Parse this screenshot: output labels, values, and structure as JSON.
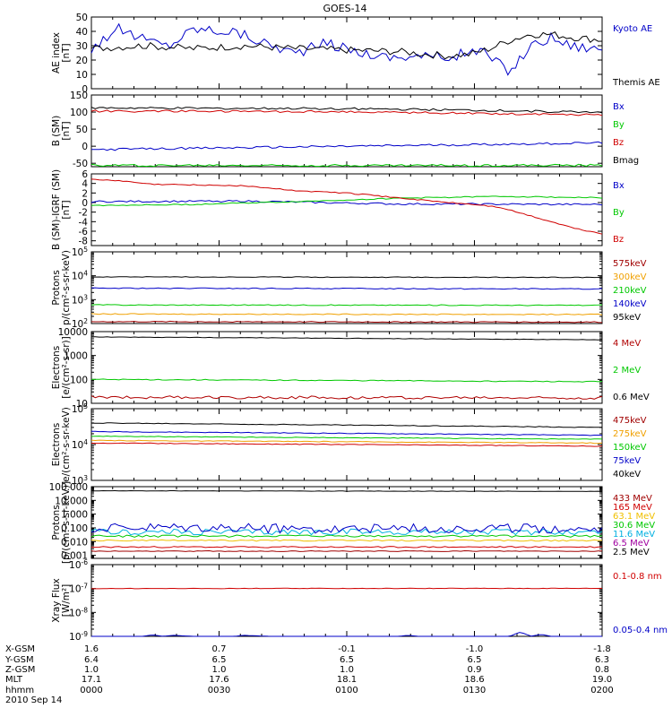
{
  "title": "GOES-14",
  "colors": {
    "black": "#000000",
    "blue": "#0000c8",
    "red": "#d00000",
    "green": "#00c800",
    "yellow": "#f0c000",
    "orange": "#f0a000",
    "cyan": "#00b0e0",
    "maroon": "#a00000",
    "darkred": "#b00000",
    "purple": "#a000a0"
  },
  "chart_data": [
    {
      "type": "line",
      "ylabel": [
        "AE index",
        "[nT]"
      ],
      "scale": "linear",
      "ylim": [
        0,
        50
      ],
      "yticks": [
        {
          "v": 0,
          "t": "0"
        },
        {
          "v": 10,
          "t": "10"
        },
        {
          "v": 20,
          "t": "20"
        },
        {
          "v": 30,
          "t": "30"
        },
        {
          "v": 40,
          "t": "40"
        },
        {
          "v": 50,
          "t": "50"
        }
      ],
      "series": [
        {
          "name": "Kyoto AE",
          "color": "blue",
          "noise": 1.5,
          "legendColor": "blue",
          "x": [
            0,
            0.05,
            0.1,
            0.15,
            0.2,
            0.28,
            0.34,
            0.4,
            0.46,
            0.52,
            0.58,
            0.64,
            0.7,
            0.76,
            0.78,
            0.82,
            0.86,
            0.9,
            0.94,
            1.0
          ],
          "y": [
            28,
            42,
            35,
            30,
            42,
            40,
            32,
            25,
            32,
            26,
            22,
            23,
            22,
            27,
            22,
            12,
            30,
            36,
            30,
            28
          ]
        },
        {
          "name": "Themis AE",
          "color": "black",
          "noise": 1.0,
          "legendColor": "black",
          "x": [
            0,
            0.1,
            0.2,
            0.3,
            0.4,
            0.5,
            0.6,
            0.66,
            0.7,
            0.74,
            0.78,
            0.82,
            0.86,
            0.9,
            0.94,
            1.0
          ],
          "y": [
            28,
            30,
            28,
            30,
            28,
            27,
            26,
            24,
            23,
            24,
            28,
            34,
            38,
            38,
            36,
            34
          ]
        }
      ]
    },
    {
      "type": "line",
      "ylabel": [
        "B (SM)",
        "[nT]"
      ],
      "scale": "linear",
      "ylim": [
        -60,
        150
      ],
      "yticks": [
        {
          "v": -50,
          "t": "-50"
        },
        {
          "v": 0,
          "t": "0"
        },
        {
          "v": 50,
          "t": "50"
        },
        {
          "v": 100,
          "t": "100"
        },
        {
          "v": 150,
          "t": "150"
        }
      ],
      "series": [
        {
          "name": "Bx",
          "color": "blue",
          "noise": 0.3,
          "legendColor": "blue",
          "x": [
            0,
            1
          ],
          "y": [
            -10,
            10
          ]
        },
        {
          "name": "By",
          "color": "green",
          "noise": 0.3,
          "legendColor": "green",
          "x": [
            0,
            1
          ],
          "y": [
            -56,
            -56
          ]
        },
        {
          "name": "Bz",
          "color": "red",
          "noise": 0.3,
          "legendColor": "red",
          "x": [
            0,
            0.5,
            1
          ],
          "y": [
            103,
            101,
            92
          ]
        },
        {
          "name": "Bmag",
          "color": "black",
          "noise": 0.3,
          "legendColor": "black",
          "x": [
            0,
            0.5,
            1
          ],
          "y": [
            112,
            110,
            100
          ]
        }
      ]
    },
    {
      "type": "line",
      "ylabel": [
        "B (SM)-IGRF (SM)",
        "[nT]"
      ],
      "scale": "linear",
      "ylim": [
        -9,
        6
      ],
      "yticks": [
        {
          "v": 6,
          "t": "6"
        },
        {
          "v": 4,
          "t": "4"
        },
        {
          "v": 2,
          "t": "2"
        },
        {
          "v": 0,
          "t": "0"
        },
        {
          "v": -2,
          "t": "-2"
        },
        {
          "v": -4,
          "t": "-4"
        },
        {
          "v": -6,
          "t": "-6"
        },
        {
          "v": -8,
          "t": "-8"
        }
      ],
      "series": [
        {
          "name": "Bx",
          "color": "blue",
          "noise": 0.25,
          "legendColor": "blue",
          "x": [
            0,
            0.3,
            0.6,
            1
          ],
          "y": [
            0.2,
            0.3,
            -0.3,
            -0.4
          ]
        },
        {
          "name": "By",
          "color": "green",
          "noise": 0.15,
          "legendColor": "green",
          "x": [
            0,
            0.2,
            0.4,
            0.6,
            0.8,
            1
          ],
          "y": [
            -0.6,
            -0.4,
            0.2,
            0.9,
            1.3,
            1.0
          ]
        },
        {
          "name": "Bz",
          "color": "red",
          "noise": 0.15,
          "legendColor": "red",
          "x": [
            0,
            0.05,
            0.12,
            0.2,
            0.3,
            0.4,
            0.5,
            0.6,
            0.7,
            0.76,
            0.8,
            0.85,
            0.9,
            0.95,
            1.0
          ],
          "y": [
            4.8,
            4.6,
            3.8,
            3.7,
            3.5,
            2.5,
            2.0,
            1.0,
            0.0,
            -0.5,
            -1.0,
            -2.5,
            -4.0,
            -5.5,
            -6.5
          ]
        }
      ]
    },
    {
      "type": "line",
      "ylabel": [
        "Protons",
        "p/(cm²-s-sr-keV)"
      ],
      "scale": "log",
      "ylim": [
        100,
        100000
      ],
      "yticks": [
        {
          "v": 100,
          "t": "10²",
          "b": "10",
          "e": "2"
        },
        {
          "v": 1000,
          "t": "10³",
          "b": "10",
          "e": "3"
        },
        {
          "v": 10000,
          "t": "10⁴",
          "b": "10",
          "e": "4"
        },
        {
          "v": 100000,
          "t": "10⁵",
          "b": "10",
          "e": "5"
        }
      ],
      "series": [
        {
          "name": "575keV",
          "color": "maroon",
          "noise": 0.02,
          "legendColor": "maroon",
          "x": [
            0,
            1
          ],
          "y": [
            120,
            115
          ]
        },
        {
          "name": "300keV",
          "color": "orange",
          "noise": 0.02,
          "legendColor": "orange",
          "x": [
            0,
            1
          ],
          "y": [
            250,
            240
          ]
        },
        {
          "name": "210keV",
          "color": "green",
          "noise": 0.02,
          "legendColor": "green",
          "x": [
            0,
            1
          ],
          "y": [
            600,
            580
          ]
        },
        {
          "name": "140keV",
          "color": "blue",
          "noise": 0.02,
          "legendColor": "blue",
          "x": [
            0,
            1
          ],
          "y": [
            3000,
            2800
          ]
        },
        {
          "name": "95keV",
          "color": "black",
          "noise": 0.015,
          "legendColor": "black",
          "x": [
            0,
            1
          ],
          "y": [
            9000,
            8500
          ]
        }
      ]
    },
    {
      "type": "line",
      "ylabel": [
        "Electrons",
        "[e/(cm²-s-sr)]"
      ],
      "scale": "log",
      "ylim": [
        10,
        10000
      ],
      "yticks": [
        {
          "v": 10,
          "t": "10"
        },
        {
          "v": 100,
          "t": "100"
        },
        {
          "v": 1000,
          "t": "1000"
        },
        {
          "v": 10000,
          "t": "10000"
        }
      ],
      "series": [
        {
          "name": "4 MeV",
          "color": "darkred",
          "noise": 0.06,
          "legendColor": "darkred",
          "x": [
            0,
            1
          ],
          "y": [
            18,
            17
          ]
        },
        {
          "name": "2 MeV",
          "color": "green",
          "noise": 0.02,
          "legendColor": "green",
          "x": [
            0,
            1
          ],
          "y": [
            100,
            80
          ]
        },
        {
          "name": "0.6 MeV",
          "color": "black",
          "noise": 0.01,
          "legendColor": "black",
          "x": [
            0,
            1
          ],
          "y": [
            6000,
            4500
          ]
        }
      ]
    },
    {
      "type": "line",
      "ylabel": [
        "Electrons",
        "e/(cm²-s-sr-keV)"
      ],
      "scale": "log",
      "ylim": [
        1000,
        100000
      ],
      "yticks": [
        {
          "v": 1000,
          "t": "10³",
          "b": "10",
          "e": "3"
        },
        {
          "v": 10000,
          "t": "10⁴",
          "b": "10",
          "e": "4"
        },
        {
          "v": 100000,
          "t": "10⁵",
          "b": "10",
          "e": "5"
        }
      ],
      "series": [
        {
          "name": "475keV",
          "color": "red",
          "noise": 0.01,
          "legendColor": "maroon",
          "x": [
            0,
            1
          ],
          "y": [
            11000,
            9000
          ]
        },
        {
          "name": "275keV",
          "color": "orange",
          "noise": 0.01,
          "legendColor": "orange",
          "x": [
            0,
            1
          ],
          "y": [
            13000,
            11000
          ]
        },
        {
          "name": "150keV",
          "color": "green",
          "noise": 0.01,
          "legendColor": "green",
          "x": [
            0,
            1
          ],
          "y": [
            17000,
            14000
          ]
        },
        {
          "name": "75keV",
          "color": "blue",
          "noise": 0.01,
          "legendColor": "blue",
          "x": [
            0,
            1
          ],
          "y": [
            23000,
            18000
          ]
        },
        {
          "name": "40keV",
          "color": "black",
          "noise": 0.01,
          "legendColor": "black",
          "x": [
            0,
            1
          ],
          "y": [
            40000,
            30000
          ]
        }
      ]
    },
    {
      "type": "line",
      "ylabel": [
        "Protons",
        "[p/(cm²-s-sr-keV)]"
      ],
      "scale": "log",
      "ylim": [
        0.0006,
        100
      ],
      "yticks": [
        {
          "v": 0.001,
          "t": "0.001"
        },
        {
          "v": 0.01,
          "t": "0.010"
        },
        {
          "v": 0.1,
          "t": "0.100"
        },
        {
          "v": 1,
          "t": "1.000"
        },
        {
          "v": 10,
          "t": "10.000"
        },
        {
          "v": 100,
          "t": "100.000"
        }
      ],
      "series": [
        {
          "name": "433 MeV",
          "color": "maroon",
          "noise": 0.03,
          "legendColor": "maroon",
          "x": [
            0,
            1
          ],
          "y": [
            0.002,
            0.002
          ]
        },
        {
          "name": "165 MeV",
          "color": "red",
          "noise": 0.05,
          "legendColor": "red",
          "x": [
            0,
            1
          ],
          "y": [
            0.004,
            0.004
          ]
        },
        {
          "name": "63.1 MeV",
          "color": "yellow",
          "noise": 0.05,
          "legendColor": "yellow",
          "x": [
            0,
            1
          ],
          "y": [
            0.012,
            0.012
          ]
        },
        {
          "name": "30.6 MeV",
          "color": "green",
          "noise": 0.08,
          "legendColor": "green",
          "x": [
            0,
            1
          ],
          "y": [
            0.025,
            0.025
          ]
        },
        {
          "name": "11.6 MeV",
          "color": "cyan",
          "noise": 0.22,
          "legendColor": "cyan",
          "x": [
            0,
            1
          ],
          "y": [
            0.05,
            0.05
          ]
        },
        {
          "name": "6.5 MeV",
          "color": "blue",
          "noise": 0.35,
          "legendColor": "purple",
          "x": [
            0,
            1
          ],
          "y": [
            0.09,
            0.09
          ]
        },
        {
          "name": "2.5 MeV",
          "color": "black",
          "noise": 0.015,
          "legendColor": "black",
          "x": [
            0,
            1
          ],
          "y": [
            50,
            45
          ]
        }
      ]
    },
    {
      "type": "line",
      "ylabel": [
        "Xray Flux",
        "[W/m²]"
      ],
      "scale": "log",
      "ylim": [
        1e-09,
        1e-06
      ],
      "yticks": [
        {
          "v": 1e-09,
          "t": "10⁻⁹",
          "b": "10",
          "e": "-9"
        },
        {
          "v": 1e-08,
          "t": "10⁻⁸",
          "b": "10",
          "e": "-8"
        },
        {
          "v": 1e-07,
          "t": "10⁻⁷",
          "b": "10",
          "e": "-7"
        },
        {
          "v": 1e-06,
          "t": "10⁻⁶",
          "b": "10",
          "e": "-6"
        }
      ],
      "series": [
        {
          "name": "0.1-0.8 nm",
          "color": "red",
          "noise": 0.01,
          "legendColor": "red",
          "x": [
            0,
            1
          ],
          "y": [
            1e-07,
            1.02e-07
          ]
        },
        {
          "name": "0.05-0.4 nm",
          "color": "blue",
          "noise": 0,
          "legendColor": "blue",
          "x": [
            0,
            0.1,
            0.12,
            0.14,
            0.16,
            0.2,
            0.28,
            0.3,
            0.35,
            0.55,
            0.6,
            0.62,
            0.64,
            0.82,
            0.84,
            0.86,
            0.88,
            0.9,
            1.0
          ],
          "y": [
            1e-09,
            1e-09,
            1.15e-09,
            1e-09,
            1.1e-09,
            1e-09,
            1e-09,
            1.1e-09,
            1e-09,
            1e-09,
            1e-09,
            1.1e-09,
            1e-09,
            1e-09,
            1.5e-09,
            1e-09,
            1.2e-09,
            1e-09,
            1e-09
          ]
        }
      ]
    }
  ],
  "xaxis": {
    "columns": [
      {
        "xgsm": "1.6",
        "ygsm": "6.4",
        "zgsm": "1.0",
        "mlt": "17.1",
        "hhmm": "0000"
      },
      {
        "xgsm": "0.7",
        "ygsm": "6.5",
        "zgsm": "1.0",
        "mlt": "17.6",
        "hhmm": "0030"
      },
      {
        "xgsm": "-0.1",
        "ygsm": "6.5",
        "zgsm": "1.0",
        "mlt": "18.1",
        "hhmm": "0100"
      },
      {
        "xgsm": "-1.0",
        "ygsm": "6.5",
        "zgsm": "0.9",
        "mlt": "18.6",
        "hhmm": "0130"
      },
      {
        "xgsm": "-1.8",
        "ygsm": "6.3",
        "zgsm": "0.8",
        "mlt": "19.0",
        "hhmm": "0200"
      }
    ],
    "row_labels": [
      "X-GSM",
      "Y-GSM",
      "Z-GSM",
      "MLT",
      "hhmm"
    ],
    "date": "2010 Sep 14"
  }
}
